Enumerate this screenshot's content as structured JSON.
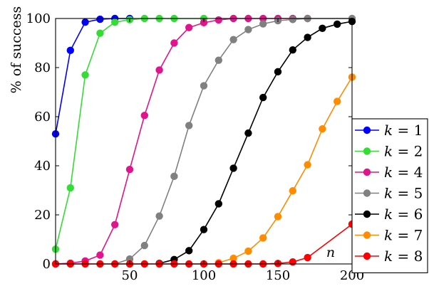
{
  "chart_data": {
    "type": "line",
    "title": "",
    "xlabel": "n",
    "ylabel": "% of success",
    "xlim": [
      0,
      200
    ],
    "ylim": [
      0,
      100
    ],
    "xticks": [
      50,
      100,
      150,
      200
    ],
    "yticks": [
      0,
      20,
      40,
      60,
      80,
      100
    ],
    "xtick_labels": [
      "50",
      "100",
      "150",
      "200"
    ],
    "ytick_labels": [
      "0",
      "20",
      "40",
      "60",
      "80",
      "100"
    ],
    "grid": false,
    "legend_position": "right",
    "series": [
      {
        "name": "k = 1",
        "color": "#0000ff",
        "points": [
          [
            0,
            53
          ],
          [
            10,
            87
          ],
          [
            20,
            98.5
          ],
          [
            30,
            99.7
          ],
          [
            40,
            100
          ],
          [
            50,
            100
          ]
        ]
      },
      {
        "name": "k = 2",
        "color": "#33dd33",
        "points": [
          [
            0,
            6
          ],
          [
            10,
            31
          ],
          [
            20,
            77
          ],
          [
            30,
            94
          ],
          [
            40,
            98.5
          ],
          [
            50,
            99.5
          ],
          [
            60,
            100
          ],
          [
            70,
            100
          ],
          [
            80,
            100
          ],
          [
            100,
            100
          ]
        ]
      },
      {
        "name": "k = 4",
        "color": "#e0148c",
        "points": [
          [
            0,
            0
          ],
          [
            10,
            0.3
          ],
          [
            20,
            1.2
          ],
          [
            30,
            3.6
          ],
          [
            40,
            16
          ],
          [
            50,
            38.5
          ],
          [
            60,
            60.5
          ],
          [
            70,
            79
          ],
          [
            80,
            90
          ],
          [
            90,
            96.3
          ],
          [
            100,
            98.3
          ],
          [
            110,
            99.4
          ],
          [
            120,
            100
          ],
          [
            130,
            100
          ],
          [
            140,
            100
          ],
          [
            150,
            100
          ],
          [
            160,
            100
          ],
          [
            170,
            100
          ]
        ]
      },
      {
        "name": "k = 5",
        "color": "#808080",
        "points": [
          [
            40,
            0
          ],
          [
            50,
            2
          ],
          [
            60,
            7.5
          ],
          [
            70,
            19.5
          ],
          [
            80,
            35.7
          ],
          [
            90,
            56.4
          ],
          [
            100,
            72.6
          ],
          [
            110,
            83
          ],
          [
            120,
            91.4
          ],
          [
            130,
            95.5
          ],
          [
            140,
            97.8
          ],
          [
            150,
            99.1
          ],
          [
            160,
            99.6
          ],
          [
            170,
            100
          ],
          [
            200,
            100
          ]
        ]
      },
      {
        "name": "k = 6",
        "color": "#000000",
        "points": [
          [
            70,
            0.2
          ],
          [
            80,
            1.8
          ],
          [
            90,
            5.4
          ],
          [
            100,
            14
          ],
          [
            110,
            24.5
          ],
          [
            120,
            39
          ],
          [
            130,
            53.3
          ],
          [
            140,
            67.8
          ],
          [
            150,
            78.3
          ],
          [
            160,
            87.2
          ],
          [
            170,
            92.3
          ],
          [
            180,
            96
          ],
          [
            190,
            97.7
          ],
          [
            200,
            98.8
          ]
        ]
      },
      {
        "name": "k = 7",
        "color": "#ff8c00",
        "points": [
          [
            110,
            0.5
          ],
          [
            120,
            2.3
          ],
          [
            130,
            5.2
          ],
          [
            140,
            10.6
          ],
          [
            150,
            19.3
          ],
          [
            160,
            29.8
          ],
          [
            170,
            40.4
          ],
          [
            180,
            55
          ],
          [
            190,
            66.2
          ],
          [
            200,
            76.1
          ]
        ]
      },
      {
        "name": "k = 8",
        "color": "#ff0000",
        "points": [
          [
            0,
            0
          ],
          [
            10,
            0
          ],
          [
            20,
            0
          ],
          [
            30,
            0
          ],
          [
            40,
            0
          ],
          [
            50,
            0
          ],
          [
            60,
            0
          ],
          [
            70,
            0
          ],
          [
            80,
            0
          ],
          [
            90,
            0
          ],
          [
            100,
            0
          ],
          [
            110,
            0
          ],
          [
            120,
            0
          ],
          [
            130,
            0
          ],
          [
            140,
            0
          ],
          [
            150,
            0.2
          ],
          [
            160,
            0.8
          ],
          [
            170,
            2.6
          ],
          [
            200,
            16.2
          ]
        ]
      }
    ]
  }
}
